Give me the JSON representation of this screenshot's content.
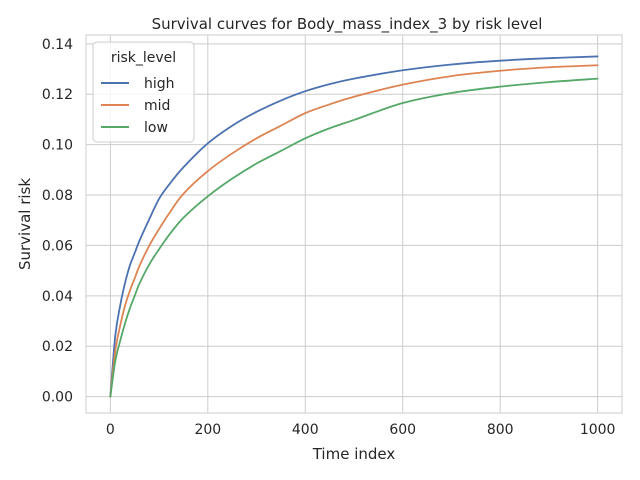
{
  "chart_data": {
    "type": "line",
    "title": "Survival curves for Body_mass_index_3 by risk level",
    "xlabel": "Time index",
    "ylabel": "Survival risk",
    "xlim": [
      -50,
      1050
    ],
    "ylim": [
      -0.0065,
      0.1435
    ],
    "xticks": [
      0,
      200,
      400,
      600,
      800,
      1000
    ],
    "xtick_labels": [
      "0",
      "200",
      "400",
      "600",
      "800",
      "1000"
    ],
    "yticks": [
      0.0,
      0.02,
      0.04,
      0.06,
      0.08,
      0.1,
      0.12,
      0.14
    ],
    "ytick_labels": [
      "0.00",
      "0.02",
      "0.04",
      "0.06",
      "0.08",
      "0.10",
      "0.12",
      "0.14"
    ],
    "grid": true,
    "legend": {
      "title": "risk_level",
      "placement": "top-left"
    },
    "x": [
      0,
      10,
      20,
      30,
      40,
      50,
      60,
      80,
      100,
      120,
      150,
      200,
      250,
      300,
      350,
      400,
      450,
      500,
      600,
      700,
      800,
      900,
      1000
    ],
    "series": [
      {
        "name": "high",
        "color": "#4c72b0",
        "values": [
          0.0,
          0.024,
          0.036,
          0.045,
          0.052,
          0.057,
          0.062,
          0.0705,
          0.0785,
          0.084,
          0.091,
          0.1005,
          0.1075,
          0.113,
          0.1175,
          0.1212,
          0.124,
          0.1262,
          0.1295,
          0.1318,
          0.1333,
          0.1343,
          0.135
        ]
      },
      {
        "name": "mid",
        "color": "#dd8452",
        "values": [
          0.0,
          0.018,
          0.028,
          0.036,
          0.042,
          0.047,
          0.052,
          0.06,
          0.0665,
          0.0725,
          0.0805,
          0.0895,
          0.0965,
          0.1025,
          0.1075,
          0.1125,
          0.116,
          0.119,
          0.1238,
          0.1272,
          0.1293,
          0.1307,
          0.1315
        ]
      },
      {
        "name": "low",
        "color": "#55a868",
        "values": [
          0.0,
          0.014,
          0.022,
          0.029,
          0.035,
          0.04,
          0.045,
          0.0525,
          0.0585,
          0.064,
          0.071,
          0.0795,
          0.0865,
          0.0925,
          0.0975,
          0.1025,
          0.1065,
          0.1098,
          0.1165,
          0.1205,
          0.123,
          0.1248,
          0.1262
        ]
      }
    ]
  }
}
